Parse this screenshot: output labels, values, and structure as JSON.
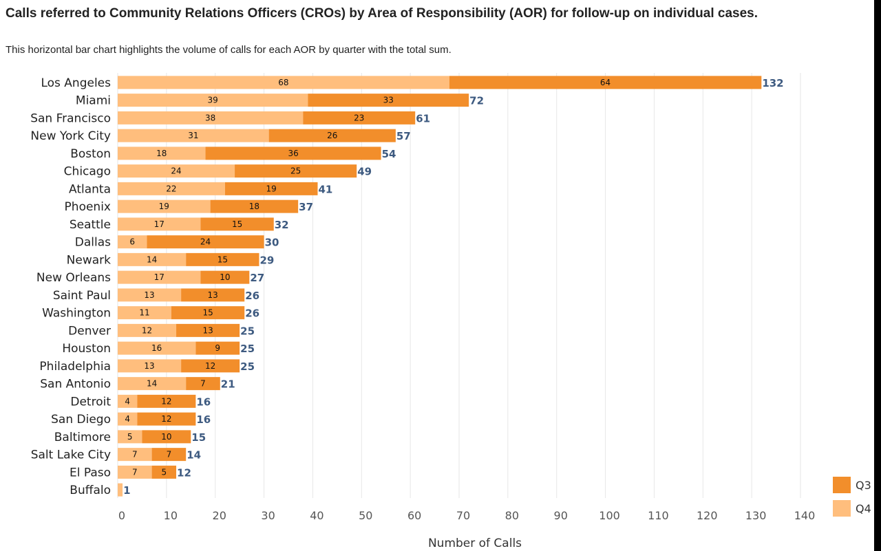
{
  "title": "Calls referred to Community Relations Officers (CROs) by Area of Responsibility (AOR) for follow-up on individual cases.",
  "subtitle": "This horizontal bar chart highlights the volume of calls for each AOR by quarter with the total sum.",
  "colors": {
    "q3": "#f28e2b",
    "q4": "#ffbe7d",
    "total": "#3d5a80",
    "grid": "#e6e6e6"
  },
  "chart_data": {
    "type": "bar",
    "orientation": "horizontal",
    "stacked": true,
    "title": "Calls referred to Community Relations Officers (CROs) by Area of Responsibility (AOR) for follow-up on individual cases.",
    "subtitle": "This horizontal bar chart highlights the volume of calls for each AOR by quarter with the total sum.",
    "xlabel": "Number of Calls",
    "ylabel": "",
    "xlim": [
      0,
      140
    ],
    "xticks": [
      0,
      10,
      20,
      30,
      40,
      50,
      60,
      70,
      80,
      90,
      100,
      110,
      120,
      130,
      140
    ],
    "grid": true,
    "legend": "bottom-right",
    "categories": [
      "Los Angeles",
      "Miami",
      "San Francisco",
      "New York City",
      "Boston",
      "Chicago",
      "Atlanta",
      "Phoenix",
      "Seattle",
      "Dallas",
      "Newark",
      "New Orleans",
      "Saint Paul",
      "Washington",
      "Denver",
      "Houston",
      "Philadelphia",
      "San Antonio",
      "Detroit",
      "San Diego",
      "Baltimore",
      "Salt Lake City",
      "El Paso",
      "Buffalo"
    ],
    "series": [
      {
        "name": "Q4",
        "values": [
          68,
          39,
          38,
          31,
          18,
          24,
          22,
          19,
          17,
          6,
          14,
          17,
          13,
          11,
          12,
          16,
          13,
          14,
          4,
          4,
          5,
          7,
          7,
          1
        ]
      },
      {
        "name": "Q3",
        "values": [
          64,
          33,
          23,
          26,
          36,
          25,
          19,
          18,
          15,
          24,
          15,
          10,
          13,
          15,
          13,
          9,
          12,
          7,
          12,
          12,
          10,
          7,
          5,
          0
        ]
      }
    ],
    "totals": [
      132,
      72,
      61,
      57,
      54,
      49,
      41,
      37,
      32,
      30,
      29,
      27,
      26,
      26,
      25,
      25,
      25,
      21,
      16,
      16,
      15,
      14,
      12,
      1
    ],
    "legend_entries": [
      "Q3",
      "Q4"
    ]
  }
}
